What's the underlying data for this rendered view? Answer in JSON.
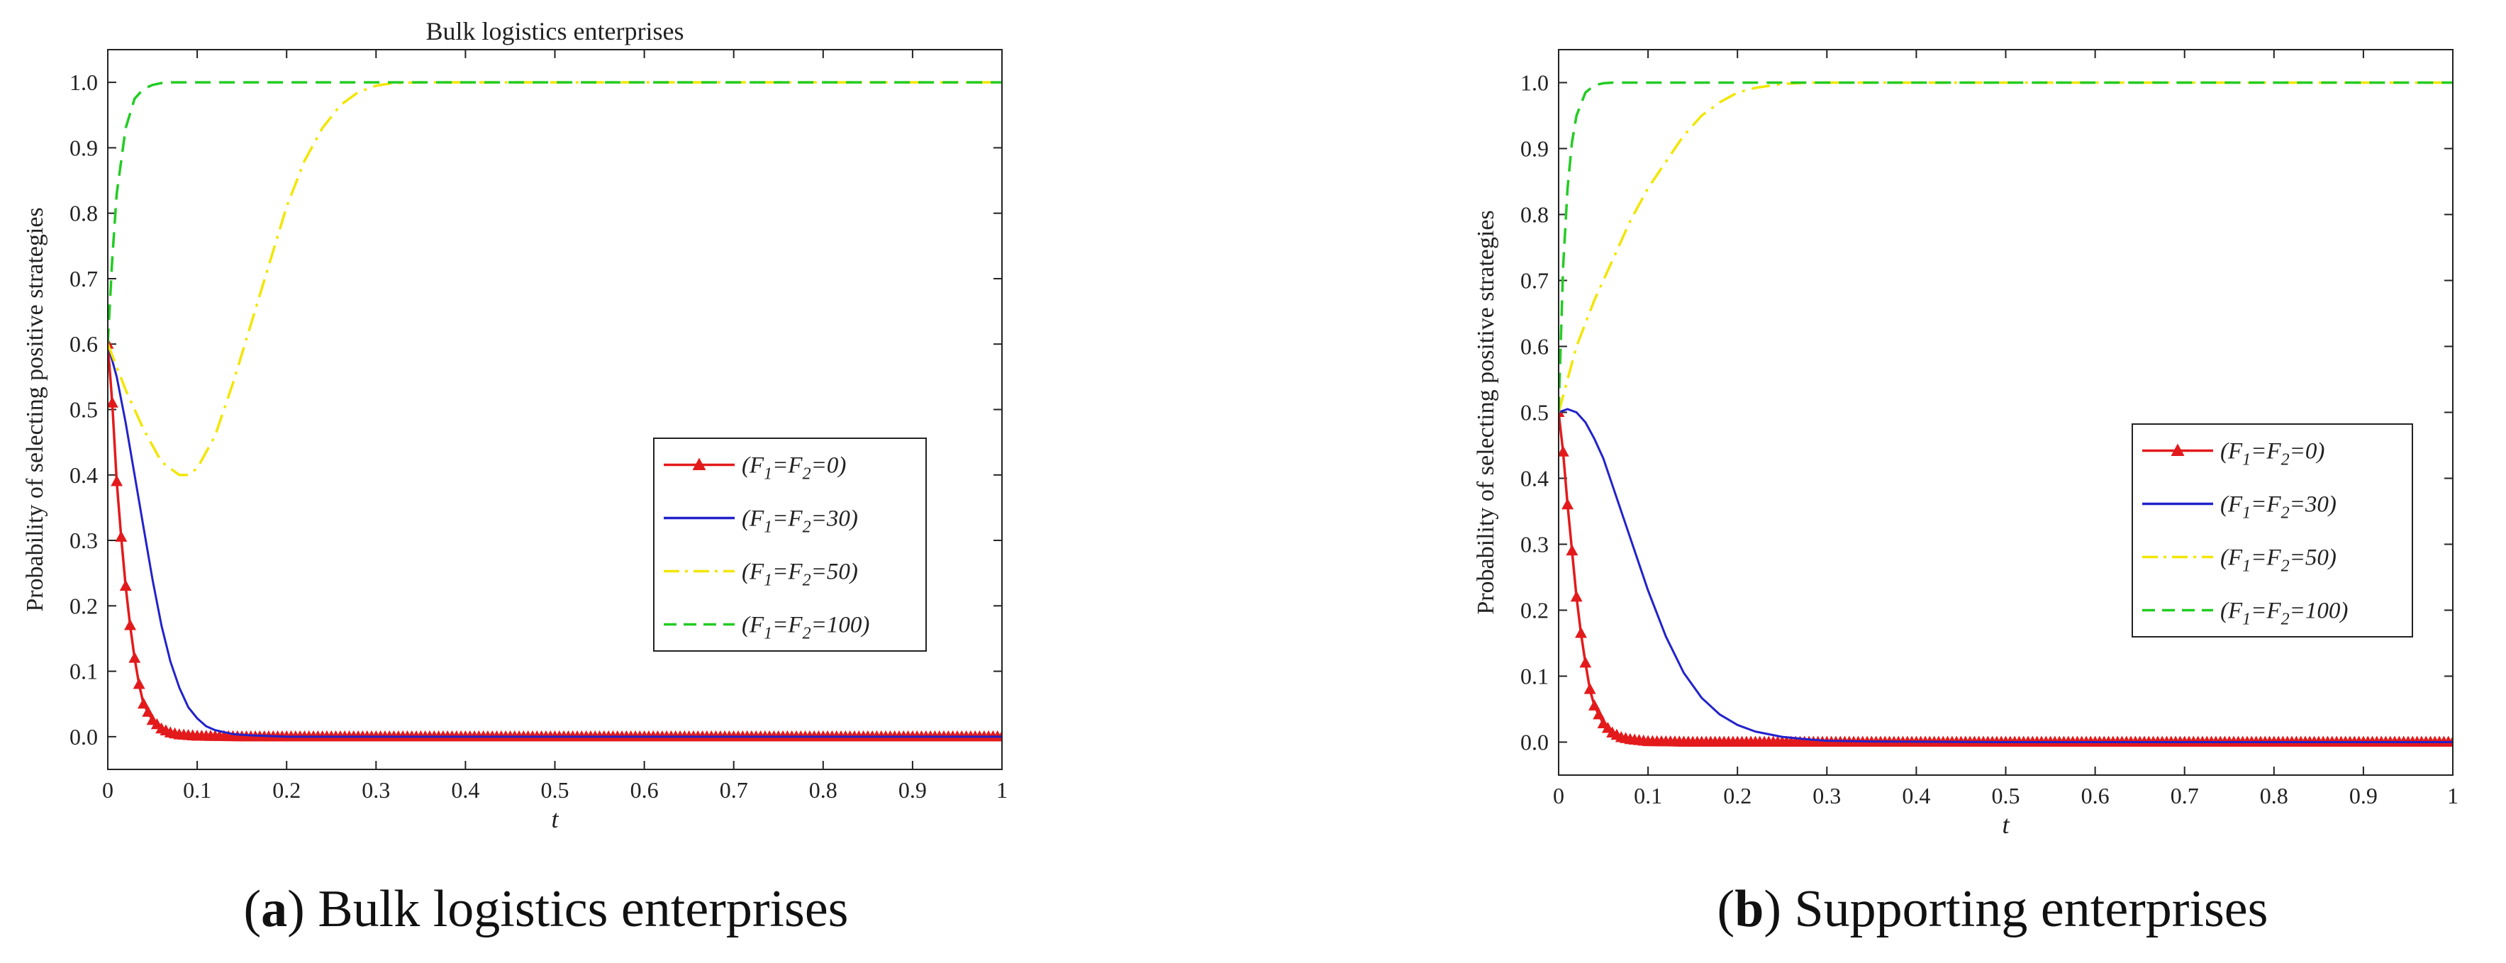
{
  "chart_data": [
    {
      "type": "line",
      "title": "Bulk logistics enterprises",
      "xlabel": "t",
      "ylabel": "Probability of selecting positive strategies",
      "xlim": [
        0,
        1
      ],
      "ylim": [
        -0.05,
        1.05
      ],
      "xticks": [
        0,
        0.1,
        0.2,
        0.3,
        0.4,
        0.5,
        0.6,
        0.7,
        0.8,
        0.9,
        1
      ],
      "xtick_labels": [
        "0",
        "0.1",
        "0.2",
        "0.3",
        "0.4",
        "0.5",
        "0.6",
        "0.7",
        "0.8",
        "0.9",
        "1"
      ],
      "yticks": [
        0,
        0.1,
        0.2,
        0.3,
        0.4,
        0.5,
        0.6,
        0.7,
        0.8,
        0.9,
        1.0
      ],
      "ytick_labels": [
        "0.0",
        "0.1",
        "0.2",
        "0.3",
        "0.4",
        "0.5",
        "0.6",
        "0.7",
        "0.8",
        "0.9",
        "1.0"
      ],
      "legend_position": "center-right",
      "series": [
        {
          "name": "(F1=F2=0)",
          "color": "#e31a1c",
          "style": "solid-triangle",
          "x": [
            0,
            0.005,
            0.01,
            0.015,
            0.02,
            0.025,
            0.03,
            0.035,
            0.04,
            0.05,
            0.06,
            0.07,
            0.08,
            0.1,
            0.15,
            0.2,
            0.3,
            0.5,
            0.7,
            1.0
          ],
          "y": [
            0.6,
            0.51,
            0.39,
            0.305,
            0.23,
            0.17,
            0.12,
            0.08,
            0.05,
            0.025,
            0.012,
            0.006,
            0.003,
            0.001,
            0.0,
            0.0,
            0.0,
            0.0,
            0.0,
            0.0
          ]
        },
        {
          "name": "(F1=F2=30)",
          "color": "#2222cc",
          "style": "solid",
          "x": [
            0,
            0.01,
            0.02,
            0.03,
            0.04,
            0.05,
            0.06,
            0.07,
            0.08,
            0.09,
            0.1,
            0.11,
            0.12,
            0.14,
            0.16,
            0.2,
            0.3,
            0.5,
            1.0
          ],
          "y": [
            0.6,
            0.55,
            0.48,
            0.4,
            0.32,
            0.24,
            0.17,
            0.115,
            0.075,
            0.045,
            0.028,
            0.016,
            0.01,
            0.004,
            0.002,
            0.0,
            0.0,
            0.0,
            0.0
          ]
        },
        {
          "name": "(F1=F2=50)",
          "color": "#f2e600",
          "style": "dash-dot",
          "x": [
            0,
            0.02,
            0.04,
            0.06,
            0.08,
            0.09,
            0.1,
            0.12,
            0.14,
            0.16,
            0.18,
            0.2,
            0.22,
            0.24,
            0.26,
            0.28,
            0.3,
            0.32,
            0.35,
            0.4,
            0.6,
            1.0
          ],
          "y": [
            0.6,
            0.53,
            0.47,
            0.42,
            0.4,
            0.4,
            0.41,
            0.46,
            0.54,
            0.63,
            0.72,
            0.81,
            0.88,
            0.93,
            0.965,
            0.985,
            0.995,
            0.999,
            1.0,
            1.0,
            1.0,
            1.0
          ]
        },
        {
          "name": "(F1=F2=100)",
          "color": "#22cc22",
          "style": "dashed",
          "x": [
            0,
            0.005,
            0.01,
            0.02,
            0.03,
            0.04,
            0.05,
            0.06,
            0.07,
            0.08,
            0.1,
            0.2,
            0.5,
            1.0
          ],
          "y": [
            0.6,
            0.73,
            0.83,
            0.93,
            0.975,
            0.99,
            0.996,
            0.999,
            1.0,
            1.0,
            1.0,
            1.0,
            1.0,
            1.0
          ]
        }
      ]
    },
    {
      "type": "line",
      "title": "",
      "xlabel": "t",
      "ylabel": "Probability of selecting positive strategies",
      "xlim": [
        0,
        1
      ],
      "ylim": [
        -0.05,
        1.05
      ],
      "xticks": [
        0,
        0.1,
        0.2,
        0.3,
        0.4,
        0.5,
        0.6,
        0.7,
        0.8,
        0.9,
        1
      ],
      "xtick_labels": [
        "0",
        "0.1",
        "0.2",
        "0.3",
        "0.4",
        "0.5",
        "0.6",
        "0.7",
        "0.8",
        "0.9",
        "1"
      ],
      "yticks": [
        0,
        0.1,
        0.2,
        0.3,
        0.4,
        0.5,
        0.6,
        0.7,
        0.8,
        0.9,
        1.0
      ],
      "ytick_labels": [
        "0.0",
        "0.1",
        "0.2",
        "0.3",
        "0.4",
        "0.5",
        "0.6",
        "0.7",
        "0.8",
        "0.9",
        "1.0"
      ],
      "legend_position": "center-right",
      "series": [
        {
          "name": "(F1=F2=0)",
          "color": "#e31a1c",
          "style": "solid-triangle",
          "x": [
            0,
            0.005,
            0.01,
            0.015,
            0.02,
            0.025,
            0.03,
            0.035,
            0.04,
            0.05,
            0.06,
            0.07,
            0.08,
            0.1,
            0.15,
            0.2,
            0.3,
            0.5,
            0.7,
            1.0
          ],
          "y": [
            0.5,
            0.44,
            0.36,
            0.29,
            0.22,
            0.165,
            0.12,
            0.08,
            0.055,
            0.028,
            0.014,
            0.007,
            0.004,
            0.001,
            0.0,
            0.0,
            0.0,
            0.0,
            0.0,
            0.0
          ]
        },
        {
          "name": "(F1=F2=30)",
          "color": "#2222cc",
          "style": "solid",
          "x": [
            0,
            0.01,
            0.02,
            0.03,
            0.04,
            0.05,
            0.06,
            0.08,
            0.1,
            0.12,
            0.14,
            0.16,
            0.18,
            0.2,
            0.22,
            0.25,
            0.28,
            0.3,
            0.35,
            0.5,
            1.0
          ],
          "y": [
            0.5,
            0.505,
            0.5,
            0.485,
            0.46,
            0.43,
            0.39,
            0.31,
            0.23,
            0.16,
            0.105,
            0.067,
            0.042,
            0.026,
            0.016,
            0.008,
            0.004,
            0.002,
            0.001,
            0.0,
            0.0
          ]
        },
        {
          "name": "(F1=F2=50)",
          "color": "#f2e600",
          "style": "dash-dot",
          "x": [
            0,
            0.01,
            0.02,
            0.04,
            0.06,
            0.08,
            0.1,
            0.12,
            0.14,
            0.16,
            0.18,
            0.2,
            0.22,
            0.25,
            0.28,
            0.32,
            0.4,
            0.6,
            1.0
          ],
          "y": [
            0.5,
            0.55,
            0.6,
            0.67,
            0.73,
            0.79,
            0.84,
            0.88,
            0.92,
            0.95,
            0.97,
            0.985,
            0.992,
            0.998,
            1.0,
            1.0,
            1.0,
            1.0,
            1.0
          ]
        },
        {
          "name": "(F1=F2=100)",
          "color": "#22cc22",
          "style": "dashed",
          "x": [
            0,
            0.005,
            0.01,
            0.015,
            0.02,
            0.03,
            0.04,
            0.05,
            0.06,
            0.08,
            0.1,
            0.2,
            0.5,
            1.0
          ],
          "y": [
            0.5,
            0.72,
            0.84,
            0.91,
            0.95,
            0.985,
            0.996,
            0.999,
            1.0,
            1.0,
            1.0,
            1.0,
            1.0,
            1.0
          ]
        }
      ]
    }
  ],
  "legend_labels": [
    {
      "prefix": "(F",
      "s1": "1",
      "mid": "=F",
      "s2": "2",
      "suffix": "=0)"
    },
    {
      "prefix": "(F",
      "s1": "1",
      "mid": "=F",
      "s2": "2",
      "suffix": "=30)"
    },
    {
      "prefix": "(F",
      "s1": "1",
      "mid": "=F",
      "s2": "2",
      "suffix": "=50)"
    },
    {
      "prefix": "(F",
      "s1": "1",
      "mid": "=F",
      "s2": "2",
      "suffix": "=100)"
    }
  ],
  "captions": [
    {
      "letter": "a",
      "text": " Bulk logistics enterprises"
    },
    {
      "letter": "b",
      "text": " Supporting enterprises"
    }
  ]
}
